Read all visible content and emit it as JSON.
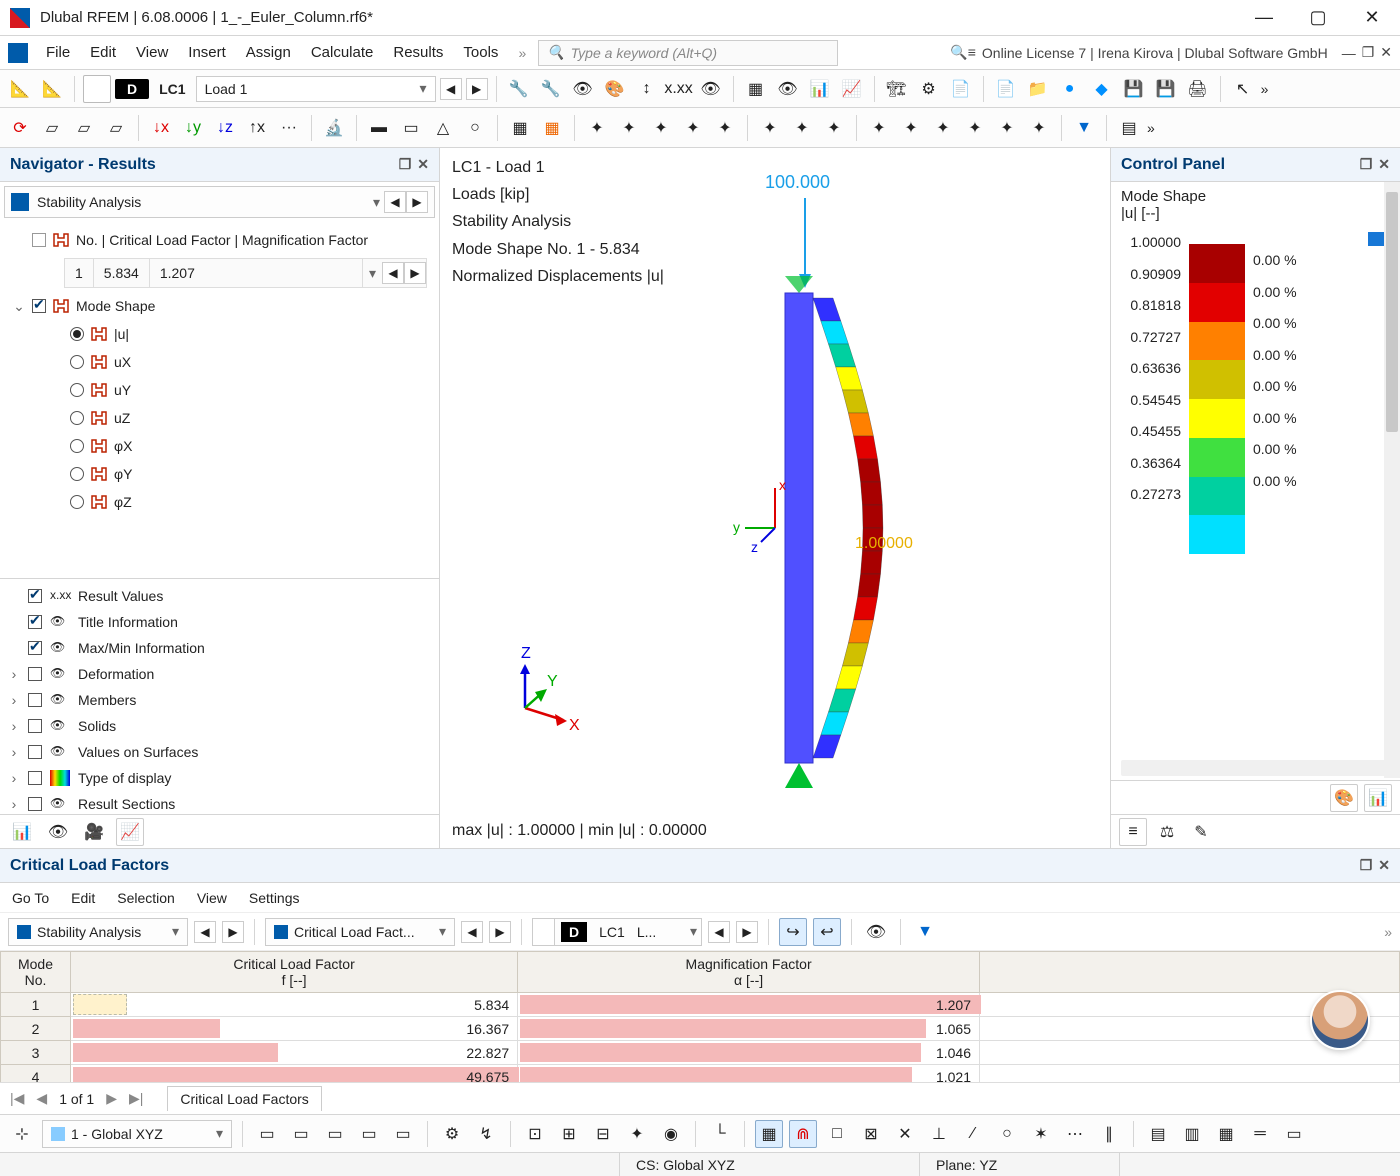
{
  "window": {
    "title": "Dlubal RFEM | 6.08.0006 | 1_-_Euler_Column.rf6*"
  },
  "menus": [
    "File",
    "Edit",
    "View",
    "Insert",
    "Assign",
    "Calculate",
    "Results",
    "Tools"
  ],
  "search_placeholder": "Type a keyword (Alt+Q)",
  "license": "Online License 7 | Irena Kirova | Dlubal Software GmbH",
  "lc": {
    "chip": "D",
    "code": "LC1",
    "name": "Load 1"
  },
  "navigator": {
    "title": "Navigator - Results",
    "combo": "Stability Analysis",
    "root": "No. | Critical Load Factor | Magnification Factor",
    "sub": {
      "no": "1",
      "f": "5.834",
      "a": "1.207"
    },
    "mode_shape": "Mode Shape",
    "components": [
      "|u|",
      "uX",
      "uY",
      "uZ",
      "φX",
      "φY",
      "φZ"
    ],
    "selected_component": 0,
    "options": [
      {
        "label": "Result Values",
        "checked": true,
        "expandable": false,
        "color": "xxx"
      },
      {
        "label": "Title Information",
        "checked": true,
        "expandable": false,
        "color": "eye"
      },
      {
        "label": "Max/Min Information",
        "checked": true,
        "expandable": false,
        "color": "eye"
      },
      {
        "label": "Deformation",
        "checked": false,
        "expandable": true,
        "color": "eye"
      },
      {
        "label": "Members",
        "checked": false,
        "expandable": true,
        "color": "eye"
      },
      {
        "label": "Solids",
        "checked": false,
        "expandable": true,
        "color": "eye"
      },
      {
        "label": "Values on Surfaces",
        "checked": false,
        "expandable": true,
        "color": "eye"
      },
      {
        "label": "Type of display",
        "checked": false,
        "expandable": true,
        "color": "type"
      },
      {
        "label": "Result Sections",
        "checked": false,
        "expandable": true,
        "color": "eye"
      }
    ]
  },
  "viewport": {
    "lines": [
      "LC1 - Load 1",
      "Loads [kip]",
      "Stability Analysis",
      "Mode Shape No. 1 - 5.834",
      "Normalized Displacements |u|"
    ],
    "load_label": "100.000",
    "peak_label": "1.00000",
    "minmax": "max |u| : 1.00000 | min |u| : 0.00000",
    "colors": [
      "#a80000",
      "#e20000",
      "#ff8000",
      "#d0c000",
      "#ffff00",
      "#40e040",
      "#00d0a0",
      "#00e0ff",
      "#0090ff",
      "#3030ff"
    ]
  },
  "control_panel": {
    "title": "Control Panel",
    "heading": "Mode Shape",
    "unit": "|u| [--]",
    "labels": [
      "1.00000",
      "0.90909",
      "0.81818",
      "0.72727",
      "0.63636",
      "0.54545",
      "0.45455",
      "0.36364",
      "0.27273"
    ],
    "pcts": [
      "0.00 %",
      "0.00 %",
      "0.00 %",
      "0.00 %",
      "0.00 %",
      "0.00 %",
      "0.00 %",
      "0.00 %"
    ],
    "colors": [
      "#a80000",
      "#e20000",
      "#ff8000",
      "#d0c000",
      "#ffff00",
      "#40e040",
      "#00d0a0",
      "#00e0ff"
    ]
  },
  "clf": {
    "title": "Critical Load Factors",
    "menus": [
      "Go To",
      "Edit",
      "Selection",
      "View",
      "Settings"
    ],
    "combo1": "Stability Analysis",
    "combo2": "Critical Load Fact...",
    "lc_chip": "D",
    "lc_code": "LC1",
    "lc_name": "L...",
    "headers": {
      "mode": "Mode\nNo.",
      "f": "Critical Load Factor\nf [--]",
      "a": "Magnification Factor\nα [--]"
    },
    "rows": [
      {
        "mode": "1",
        "f": "5.834",
        "a": "1.207",
        "f_pct": 12,
        "a_pct": 100,
        "hl": true
      },
      {
        "mode": "2",
        "f": "16.367",
        "a": "1.065",
        "f_pct": 33,
        "a_pct": 88
      },
      {
        "mode": "3",
        "f": "22.827",
        "a": "1.046",
        "f_pct": 46,
        "a_pct": 87
      },
      {
        "mode": "4",
        "f": "49.675",
        "a": "1.021",
        "f_pct": 100,
        "a_pct": 85
      }
    ],
    "pager": "1 of 1",
    "tab": "Critical Load Factors",
    "colors": {
      "bar": "#f4b9b9",
      "hl": "#fff2cc",
      "header_bg": "#f3f1ec"
    }
  },
  "bottom": {
    "cs_combo": "1 - Global XYZ"
  },
  "status": {
    "cs": "CS: Global XYZ",
    "plane": "Plane: YZ"
  }
}
